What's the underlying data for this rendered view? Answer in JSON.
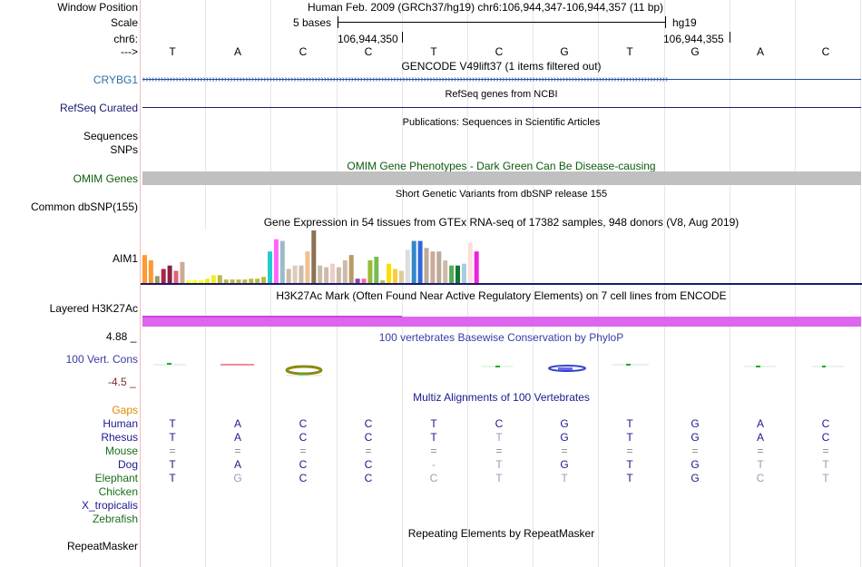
{
  "header": {
    "window_position_label": "Window Position",
    "window_position_value": "Human Feb. 2009 (GRCh37/hg19)   chr6:106,944,347-106,944,357 (11 bp)",
    "scale_label": "Scale",
    "scale_text": "5 bases",
    "assembly": "hg19",
    "chrom_label": "chr6:",
    "pos1": "106,944,350",
    "pos2": "106,944,355",
    "strand_label": "--->"
  },
  "sequence": [
    "T",
    "A",
    "C",
    "C",
    "T",
    "C",
    "G",
    "T",
    "G",
    "A",
    "C"
  ],
  "tracks": {
    "gencode": {
      "title": "GENCODE V49lift37 (1 items filtered out)",
      "gene": "CRYBG1"
    },
    "refseq": {
      "title": "RefSeq genes from NCBI",
      "label": "RefSeq Curated"
    },
    "publications": {
      "title": "Publications: Sequences in Scientific Articles",
      "label1": "Sequences",
      "label2": "SNPs"
    },
    "omim": {
      "title": "OMIM Gene Phenotypes - Dark Green Can Be Disease-causing",
      "label": "OMIM Genes"
    },
    "dbsnp": {
      "title": "Short Genetic Variants from dbSNP release 155",
      "label": "Common dbSNP(155)"
    },
    "gtex": {
      "title": "Gene Expression in 54 tissues from GTEx RNA-seq of 17382 samples, 948 donors (V8, Aug 2019)",
      "label": "AIM1"
    },
    "h3k27ac": {
      "title": "H3K27Ac Mark (Often Found Near Active Regulatory Elements) on 7 cell lines from ENCODE",
      "label": "Layered H3K27Ac"
    },
    "phylop": {
      "title": "100 vertebrates Basewise Conservation by PhyloP",
      "label": "100 Vert. Cons",
      "max": "4.88 _",
      "min": "-4.5 _"
    },
    "multiz": {
      "title": "Multiz Alignments of 100 Vertebrates",
      "gaps_label": "Gaps",
      "species": [
        {
          "name": "Human",
          "bases": [
            "T",
            "A",
            "C",
            "C",
            "T",
            "C",
            "G",
            "T",
            "G",
            "A",
            "C"
          ]
        },
        {
          "name": "Rhesus",
          "bases": [
            "T",
            "A",
            "C",
            "C",
            "T",
            "T",
            "G",
            "T",
            "G",
            "A",
            "C"
          ]
        },
        {
          "name": "Mouse",
          "bases": [
            "=",
            "=",
            "=",
            "=",
            "=",
            "=",
            "=",
            "=",
            "=",
            "=",
            "="
          ]
        },
        {
          "name": "Dog",
          "bases": [
            "T",
            "A",
            "C",
            "C",
            "-",
            "T",
            "G",
            "T",
            "G",
            "T",
            "T"
          ]
        },
        {
          "name": "Elephant",
          "bases": [
            "T",
            "G",
            "C",
            "C",
            "C",
            "T",
            "T",
            "T",
            "G",
            "C",
            "T"
          ]
        },
        {
          "name": "Chicken",
          "bases": []
        },
        {
          "name": "X_tropicalis",
          "bases": []
        },
        {
          "name": "Zebrafish",
          "bases": []
        }
      ]
    },
    "repeatmasker": {
      "title": "Repeating Elements by RepeatMasker",
      "label": "RepeatMasker"
    }
  },
  "chart_data": {
    "type": "bar",
    "title": "Gene Expression in 54 tissues from GTEx RNA-seq of 17382 samples, 948 donors (V8, Aug 2019)",
    "values": [
      32,
      26,
      8,
      16,
      20,
      14,
      24,
      3,
      3,
      3,
      5,
      9,
      9,
      4,
      4,
      4,
      4,
      5,
      5,
      7,
      36,
      50,
      48,
      16,
      20,
      20,
      36,
      60,
      20,
      18,
      22,
      18,
      26,
      32,
      5,
      5,
      26,
      30,
      3,
      22,
      16,
      14,
      38,
      48,
      48,
      40,
      36,
      36,
      26,
      20,
      20,
      22,
      46,
      36
    ],
    "colors": [
      "#ff9933",
      "#ff9933",
      "#999966",
      "#aa2244",
      "#882244",
      "#dd6677",
      "#ccaa99",
      "#ffff00",
      "#ffff00",
      "#ffff00",
      "#eeee22",
      "#eeee22",
      "#bbbb44",
      "#bbbb44",
      "#bbbb44",
      "#bbbb44",
      "#bbbb44",
      "#bbbb44",
      "#bbbb44",
      "#bbbb44",
      "#22cccc",
      "#ff66ff",
      "#99bbcc",
      "#ccbbaa",
      "#ddccbb",
      "#ccbbaa",
      "#f0c090",
      "#8b7355",
      "#ccbbaa",
      "#ccbbaa",
      "#eecccc",
      "#ccbbaa",
      "#ccbbaa",
      "#bb9966",
      "#8844aa",
      "#ff6699",
      "#99bb33",
      "#77bb55",
      "#bbbb44",
      "#ffdd00",
      "#ffcc33",
      "#ddcc99",
      "#dddddd",
      "#3388cc",
      "#3366dd",
      "#bbaa99",
      "#ccaa99",
      "#bbaa99",
      "#ccbbaa",
      "#55aa55",
      "#117733",
      "#aaccdd",
      "#ffdddd",
      "#ee22dd"
    ],
    "ylim": [
      0,
      60
    ]
  }
}
